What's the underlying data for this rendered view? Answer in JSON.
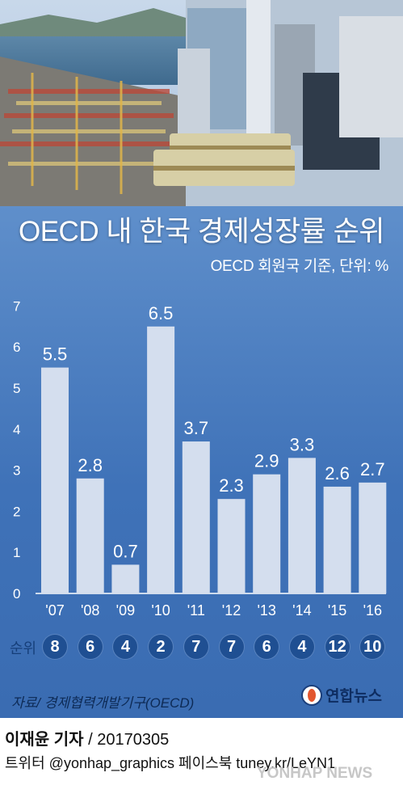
{
  "title": "OECD 내 한국 경제성장률 순위",
  "subtitle": "OECD 회원국 기준, 단위: %",
  "rank_label": "순위",
  "ranks": [
    "8",
    "6",
    "4",
    "2",
    "7",
    "7",
    "6",
    "4",
    "12",
    "10"
  ],
  "source": "자료/ 경제협력개발기구(OECD)",
  "logo_text": "연합뉴스",
  "reporter": "이재윤 기자",
  "reporter_date": " / 20170305",
  "social": "트위터 @yonhap_graphics  페이스북 tuney.kr/LeYN1",
  "watermark": "YONHAP NEWS",
  "colors": {
    "bar": "#d4deee",
    "label": "#ffffff",
    "axis": "#ffffff",
    "badge": "#1f4f92"
  },
  "chart_data": {
    "type": "bar",
    "categories": [
      "'07",
      "'08",
      "'09",
      "'10",
      "'11",
      "'12",
      "'13",
      "'14",
      "'15",
      "'16"
    ],
    "values": [
      5.5,
      2.8,
      0.7,
      6.5,
      3.7,
      2.3,
      2.9,
      3.3,
      2.6,
      2.7
    ],
    "data_labels": [
      "5.5",
      "2.8",
      "0.7",
      "6.5",
      "3.7",
      "2.3",
      "2.9",
      "3.3",
      "2.6",
      "2.7"
    ],
    "yticks": [
      "0",
      "1",
      "2",
      "3",
      "4",
      "5",
      "6",
      "7"
    ],
    "ylim": [
      0,
      7
    ],
    "grid": false
  }
}
